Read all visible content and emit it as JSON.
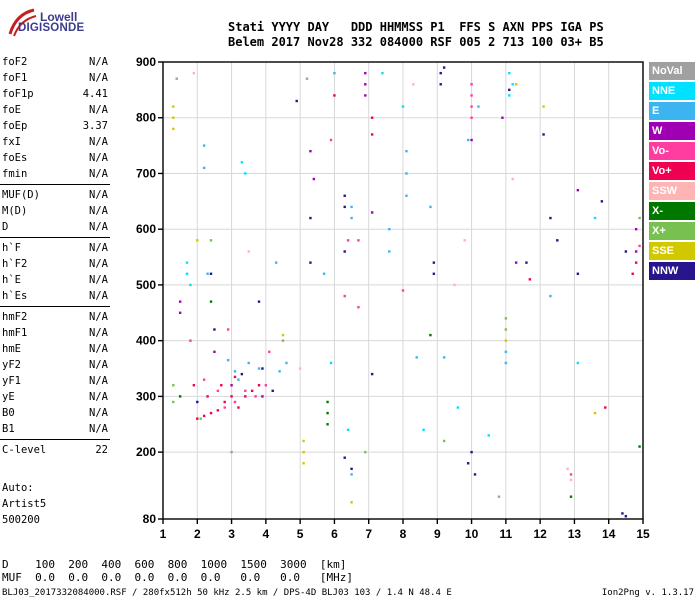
{
  "logo": {
    "line1": "Lowell",
    "line2": "DIGISONDE"
  },
  "header": {
    "row1": "Stati YYYY DAY   DDD HHMMSS P1  FFS S AXN PPS IGA PS",
    "row2": "Belem 2017 Nov28 332 084000 RSF 005 2 713 100 03+ B5"
  },
  "params": [
    [
      {
        "name": "foF2",
        "value": "N/A"
      },
      {
        "name": "foF1",
        "value": "N/A"
      },
      {
        "name": "foF1p",
        "value": "4.41"
      },
      {
        "name": "foE",
        "value": "N/A"
      },
      {
        "name": "foEp",
        "value": "3.37"
      },
      {
        "name": "fxI",
        "value": "N/A"
      },
      {
        "name": "foEs",
        "value": "N/A"
      },
      {
        "name": "fmin",
        "value": "N/A"
      }
    ],
    [
      {
        "name": "MUF(D)",
        "value": "N/A"
      },
      {
        "name": "M(D)",
        "value": "N/A"
      },
      {
        "name": "D",
        "value": "N/A"
      }
    ],
    [
      {
        "name": "h`F",
        "value": "N/A"
      },
      {
        "name": "h`F2",
        "value": "N/A"
      },
      {
        "name": "h`E",
        "value": "N/A"
      },
      {
        "name": "h`Es",
        "value": "N/A"
      }
    ],
    [
      {
        "name": "hmF2",
        "value": "N/A"
      },
      {
        "name": "hmF1",
        "value": "N/A"
      },
      {
        "name": "hmE",
        "value": "N/A"
      },
      {
        "name": "yF2",
        "value": "N/A"
      },
      {
        "name": "yF1",
        "value": "N/A"
      },
      {
        "name": "yE",
        "value": "N/A"
      },
      {
        "name": "B0",
        "value": "N/A"
      },
      {
        "name": "B1",
        "value": "N/A"
      }
    ],
    [
      {
        "name": "C-level",
        "value": "22"
      }
    ]
  ],
  "auto": {
    "line1": "Auto:",
    "line2": "Artist5",
    "line3": "500200"
  },
  "dmuf": {
    "d_row": "D    100  200  400  600  800  1000  1500  3000  [km]",
    "muf_row": "MUF  0.0  0.0  0.0  0.0  0.0  0.0   0.0   0.0   [MHz]"
  },
  "footer": {
    "left": "BLJ03_2017332084000.RSF / 280fx512h 50 kHz 2.5 km / DPS-4D BLJ03 103 / 1.4 N 48.4 E",
    "right": "Ion2Png v. 1.3.17"
  },
  "legend": [
    {
      "label": "NoVal",
      "color": "#a0a0a0"
    },
    {
      "label": "NNE",
      "color": "#00e0ff"
    },
    {
      "label": "E",
      "color": "#3cb4f0"
    },
    {
      "label": "W",
      "color": "#a000b4"
    },
    {
      "label": "Vo-",
      "color": "#ff3ca0"
    },
    {
      "label": "Vo+",
      "color": "#f00050"
    },
    {
      "label": "SSW",
      "color": "#ffb4b4"
    },
    {
      "label": "X-",
      "color": "#007800"
    },
    {
      "label": "X+",
      "color": "#78c050"
    },
    {
      "label": "SSE",
      "color": "#d2c800"
    },
    {
      "label": "NNW",
      "color": "#28148c"
    }
  ],
  "chart_data": {
    "type": "scatter",
    "xlabel": "",
    "ylabel": "",
    "xlim": [
      1,
      15
    ],
    "ylim": [
      80,
      900
    ],
    "x_ticks": [
      1,
      2,
      3,
      4,
      5,
      6,
      7,
      8,
      9,
      10,
      11,
      12,
      13,
      14,
      15
    ],
    "y_ticks": [
      80,
      200,
      300,
      400,
      500,
      600,
      700,
      800,
      900
    ],
    "grid": true,
    "legend_position": "right",
    "series": [
      {
        "name": "NNW",
        "color": "#28148c",
        "points": [
          [
            9.1,
            880
          ],
          [
            9.1,
            860
          ],
          [
            9.2,
            890
          ],
          [
            11.1,
            850
          ],
          [
            6.3,
            660
          ],
          [
            6.3,
            640
          ],
          [
            6.3,
            560
          ],
          [
            5.3,
            620
          ],
          [
            5.3,
            540
          ],
          [
            4.9,
            830
          ],
          [
            8.9,
            540
          ],
          [
            8.9,
            520
          ],
          [
            12.1,
            770
          ],
          [
            12.3,
            620
          ],
          [
            12.5,
            580
          ],
          [
            13.1,
            520
          ],
          [
            13.8,
            650
          ],
          [
            14.5,
            560
          ],
          [
            2.0,
            290
          ],
          [
            2.4,
            520
          ],
          [
            3.3,
            340
          ],
          [
            3.9,
            350
          ],
          [
            6.3,
            190
          ],
          [
            6.5,
            170
          ],
          [
            9.9,
            180
          ],
          [
            10.0,
            200
          ],
          [
            10.1,
            160
          ],
          [
            14.4,
            90
          ],
          [
            14.5,
            85
          ],
          [
            2.5,
            420
          ],
          [
            3.8,
            470
          ],
          [
            4.2,
            310
          ],
          [
            7.1,
            340
          ],
          [
            11.6,
            540
          ]
        ]
      },
      {
        "name": "E",
        "color": "#3cb4f0",
        "points": [
          [
            2.3,
            520
          ],
          [
            2.2,
            750
          ],
          [
            2.2,
            710
          ],
          [
            2.9,
            365
          ],
          [
            3.1,
            345
          ],
          [
            3.2,
            330
          ],
          [
            3.5,
            360
          ],
          [
            3.8,
            350
          ],
          [
            4.4,
            345
          ],
          [
            4.6,
            360
          ],
          [
            5.7,
            520
          ],
          [
            6.5,
            640
          ],
          [
            6.5,
            620
          ],
          [
            6.5,
            160
          ],
          [
            7.6,
            560
          ],
          [
            7.6,
            600
          ],
          [
            8.1,
            660
          ],
          [
            8.1,
            700
          ],
          [
            8.1,
            740
          ],
          [
            8.8,
            640
          ],
          [
            9.9,
            760
          ],
          [
            10.2,
            820
          ],
          [
            11.0,
            380
          ],
          [
            11.0,
            360
          ],
          [
            4.3,
            540
          ],
          [
            8.4,
            370
          ],
          [
            9.2,
            370
          ],
          [
            12.3,
            480
          ],
          [
            6.0,
            880
          ]
        ]
      },
      {
        "name": "NNE",
        "color": "#00e0ff",
        "points": [
          [
            1.7,
            540
          ],
          [
            1.7,
            520
          ],
          [
            1.8,
            500
          ],
          [
            3.4,
            700
          ],
          [
            3.3,
            720
          ],
          [
            5.9,
            360
          ],
          [
            7.4,
            880
          ],
          [
            8.0,
            820
          ],
          [
            11.1,
            880
          ],
          [
            11.2,
            860
          ],
          [
            11.1,
            840
          ],
          [
            8.6,
            240
          ],
          [
            10.5,
            230
          ],
          [
            6.4,
            240
          ],
          [
            9.6,
            280
          ],
          [
            13.1,
            360
          ],
          [
            13.6,
            620
          ]
        ]
      },
      {
        "name": "W",
        "color": "#a000b4",
        "points": [
          [
            1.5,
            470
          ],
          [
            1.5,
            450
          ],
          [
            2.5,
            380
          ],
          [
            3.0,
            320
          ],
          [
            3.9,
            300
          ],
          [
            5.3,
            740
          ],
          [
            5.4,
            690
          ],
          [
            6.9,
            880
          ],
          [
            6.9,
            860
          ],
          [
            6.9,
            840
          ],
          [
            10.0,
            760
          ],
          [
            10.9,
            800
          ],
          [
            11.3,
            540
          ],
          [
            7.1,
            630
          ],
          [
            13.1,
            670
          ],
          [
            14.8,
            600
          ],
          [
            14.8,
            560
          ]
        ]
      },
      {
        "name": "Vo-",
        "color": "#ff3ca0",
        "points": [
          [
            2.2,
            330
          ],
          [
            2.6,
            310
          ],
          [
            2.8,
            280
          ],
          [
            3.1,
            290
          ],
          [
            3.4,
            310
          ],
          [
            3.7,
            300
          ],
          [
            4.0,
            320
          ],
          [
            4.1,
            380
          ],
          [
            1.8,
            400
          ],
          [
            2.9,
            420
          ],
          [
            5.9,
            760
          ],
          [
            6.4,
            580
          ],
          [
            6.7,
            580
          ],
          [
            8.0,
            490
          ],
          [
            10.0,
            860
          ],
          [
            10.0,
            840
          ],
          [
            10.0,
            820
          ],
          [
            10.0,
            800
          ],
          [
            14.9,
            570
          ],
          [
            12.9,
            160
          ],
          [
            6.3,
            480
          ],
          [
            6.7,
            460
          ]
        ]
      },
      {
        "name": "Vo+",
        "color": "#f00050",
        "points": [
          [
            2.0,
            260
          ],
          [
            2.2,
            265
          ],
          [
            2.4,
            270
          ],
          [
            2.6,
            275
          ],
          [
            2.8,
            290
          ],
          [
            3.0,
            300
          ],
          [
            3.2,
            280
          ],
          [
            3.4,
            300
          ],
          [
            3.6,
            310
          ],
          [
            3.8,
            320
          ],
          [
            2.3,
            300
          ],
          [
            2.7,
            320
          ],
          [
            3.1,
            335
          ],
          [
            1.9,
            320
          ],
          [
            7.1,
            770
          ],
          [
            7.1,
            800
          ],
          [
            11.7,
            510
          ],
          [
            14.8,
            540
          ],
          [
            14.7,
            520
          ],
          [
            6.0,
            840
          ],
          [
            13.9,
            280
          ]
        ]
      },
      {
        "name": "SSW",
        "color": "#ffb4b4",
        "points": [
          [
            1.9,
            880
          ],
          [
            5.0,
            350
          ],
          [
            8.3,
            860
          ],
          [
            9.5,
            500
          ],
          [
            9.8,
            580
          ],
          [
            12.8,
            170
          ],
          [
            12.9,
            150
          ],
          [
            11.2,
            690
          ],
          [
            3.5,
            560
          ]
        ]
      },
      {
        "name": "X-",
        "color": "#007800",
        "points": [
          [
            5.8,
            290
          ],
          [
            5.8,
            270
          ],
          [
            5.8,
            250
          ],
          [
            2.4,
            470
          ],
          [
            1.5,
            300
          ],
          [
            12.9,
            120
          ],
          [
            8.8,
            410
          ],
          [
            14.9,
            210
          ]
        ]
      },
      {
        "name": "X+",
        "color": "#78c050",
        "points": [
          [
            2.4,
            580
          ],
          [
            4.5,
            400
          ],
          [
            1.3,
            320
          ],
          [
            1.3,
            290
          ],
          [
            2.1,
            260
          ],
          [
            6.9,
            200
          ],
          [
            9.2,
            220
          ],
          [
            11.0,
            440
          ],
          [
            11.0,
            420
          ],
          [
            14.9,
            620
          ]
        ]
      },
      {
        "name": "SSE",
        "color": "#d2c800",
        "points": [
          [
            1.3,
            820
          ],
          [
            1.3,
            800
          ],
          [
            1.3,
            780
          ],
          [
            5.1,
            220
          ],
          [
            5.1,
            200
          ],
          [
            5.1,
            180
          ],
          [
            11.0,
            400
          ],
          [
            11.3,
            860
          ],
          [
            12.1,
            820
          ],
          [
            13.6,
            270
          ],
          [
            2.0,
            580
          ],
          [
            6.5,
            110
          ],
          [
            4.5,
            410
          ]
        ]
      },
      {
        "name": "NoVal",
        "color": "#a0a0a0",
        "points": [
          [
            1.4,
            870
          ],
          [
            5.2,
            870
          ],
          [
            10.8,
            120
          ],
          [
            3.0,
            200
          ]
        ]
      }
    ]
  }
}
